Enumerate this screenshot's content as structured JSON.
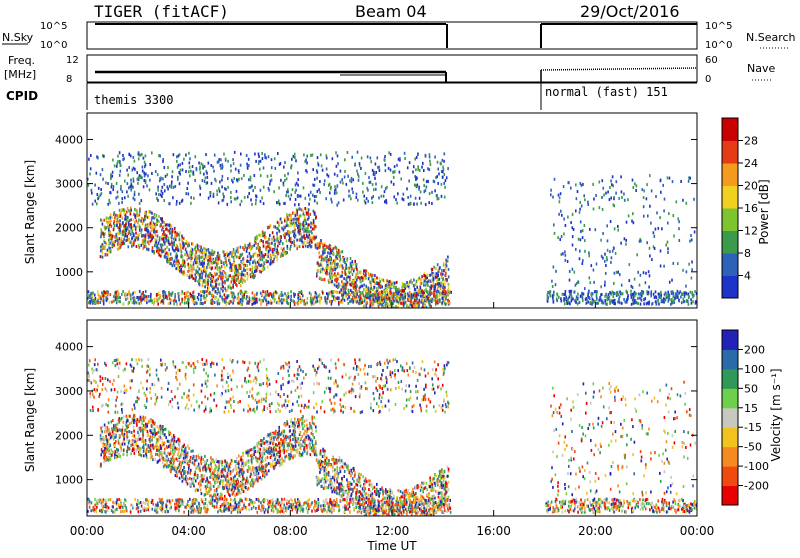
{
  "header": {
    "title": "TIGER (fitACF)",
    "beam": "Beam 04",
    "date": "29/Oct/2016"
  },
  "strips": {
    "nsky_label": "N.Sky",
    "nsearch_label": "N.Search",
    "nsky_ticks": [
      "10^5",
      "10^0"
    ],
    "nsearch_ticks": [
      "10^5",
      "10^0"
    ],
    "freq_label_1": "Freq.",
    "freq_label_2": "[MHz]",
    "freq_ticks": [
      "12",
      "8"
    ],
    "nave_label": "Nave",
    "nave_ticks": [
      "60",
      "0"
    ],
    "cpid_label": "CPID",
    "cpid_1": "themis 3300",
    "cpid_2": "normal (fast) 151"
  },
  "chart_data": [
    {
      "type": "heatmap",
      "ylabel": "Slant Range [km]",
      "yticks": [
        "4000",
        "3000",
        "2000",
        "1000"
      ],
      "ylim": [
        180,
        4600
      ],
      "x_range_hours": [
        0,
        24
      ],
      "data_gap_hours": [
        14.3,
        18.0
      ],
      "colorbar": {
        "label": "Power [dB]",
        "ticks": [
          "28",
          "24",
          "20",
          "16",
          "12",
          "8",
          "4"
        ],
        "range": [
          0,
          30
        ],
        "colors": [
          "#1e33c8",
          "#2d62b8",
          "#3c9a4c",
          "#7ec42e",
          "#f0d020",
          "#f49a1c",
          "#e43a16",
          "#c80000"
        ]
      }
    },
    {
      "type": "heatmap",
      "ylabel": "Slant Range [km]",
      "yticks": [
        "4000",
        "3000",
        "2000",
        "1000"
      ],
      "ylim": [
        180,
        4600
      ],
      "x_range_hours": [
        0,
        24
      ],
      "data_gap_hours": [
        14.3,
        18.0
      ],
      "colorbar": {
        "label": "Velocity [m s⁻¹]",
        "ticks": [
          "200",
          "100",
          "50",
          "15",
          "-15",
          "-50",
          "-100",
          "-200"
        ],
        "range": [
          -250,
          250
        ],
        "colors": [
          "#e80000",
          "#f04a10",
          "#f58a20",
          "#f2c21e",
          "#c8c8c0",
          "#6ed04a",
          "#2f9a58",
          "#2a6aa8",
          "#2222b8"
        ]
      }
    }
  ],
  "xaxis": {
    "label": "Time UT",
    "ticks": [
      "00:00",
      "04:00",
      "08:00",
      "12:00",
      "16:00",
      "20:00",
      "00:00"
    ]
  }
}
